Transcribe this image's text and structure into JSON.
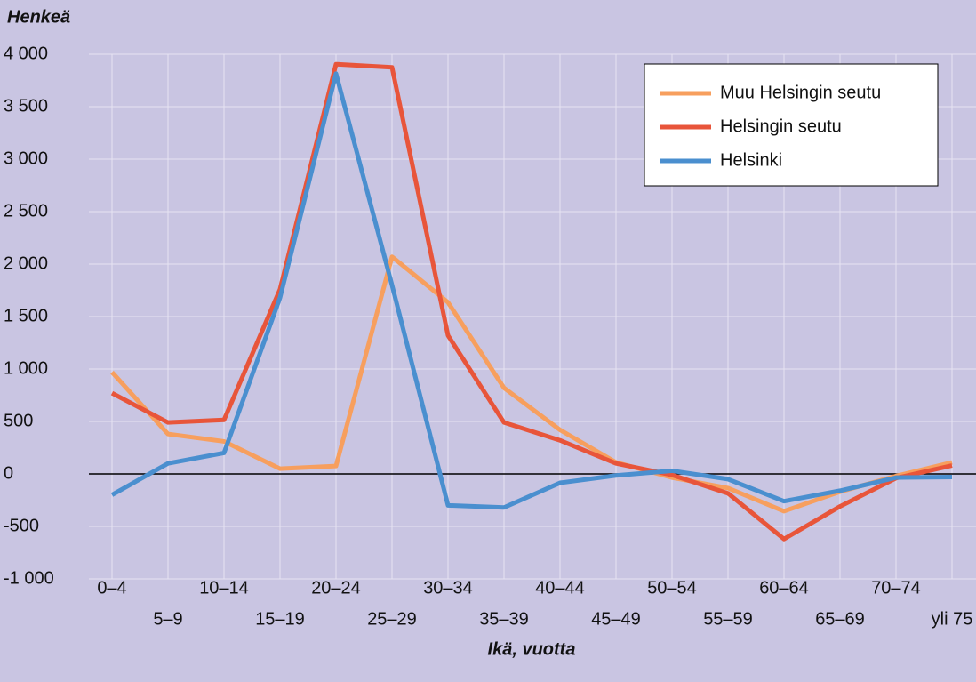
{
  "chart_data": {
    "type": "line",
    "y_label": "Henkeä",
    "x_label": "Ikä, vuotta",
    "categories": [
      "0–4",
      "5–9",
      "10–14",
      "15–19",
      "20–24",
      "25–29",
      "30–34",
      "35–39",
      "40–44",
      "45–49",
      "50–54",
      "55–59",
      "60–64",
      "65–69",
      "70–74",
      "yli 75"
    ],
    "series": [
      {
        "name": "Muu Helsingin seutu",
        "color": "#f79f5e",
        "values": [
          970,
          380,
          310,
          50,
          75,
          2070,
          1635,
          820,
          420,
          110,
          -35,
          -135,
          -355,
          -170,
          -20,
          110
        ]
      },
      {
        "name": "Helsingin seutu",
        "color": "#e8553a",
        "values": [
          770,
          490,
          515,
          1760,
          3905,
          3875,
          1320,
          490,
          320,
          100,
          -10,
          -185,
          -620,
          -310,
          -40,
          80
        ]
      },
      {
        "name": "Helsinki",
        "color": "#4a8fcf",
        "values": [
          -200,
          100,
          200,
          1680,
          3815,
          1800,
          -300,
          -320,
          -85,
          -15,
          30,
          -50,
          -260,
          -160,
          -35,
          -30
        ]
      }
    ],
    "ylim": [
      -1000,
      4000
    ],
    "yticks": [
      {
        "value": -1000,
        "label": "-1 000"
      },
      -500,
      0,
      500,
      {
        "value": 1000,
        "label": "1 000"
      },
      {
        "value": 1500,
        "label": "1 500"
      },
      {
        "value": 2000,
        "label": "2 000"
      },
      {
        "value": 2500,
        "label": "2 500"
      },
      {
        "value": 3000,
        "label": "3 000"
      },
      {
        "value": 3500,
        "label": "3 500"
      },
      {
        "value": 4000,
        "label": "4 000"
      }
    ],
    "grid": true,
    "legend": "upper right"
  }
}
